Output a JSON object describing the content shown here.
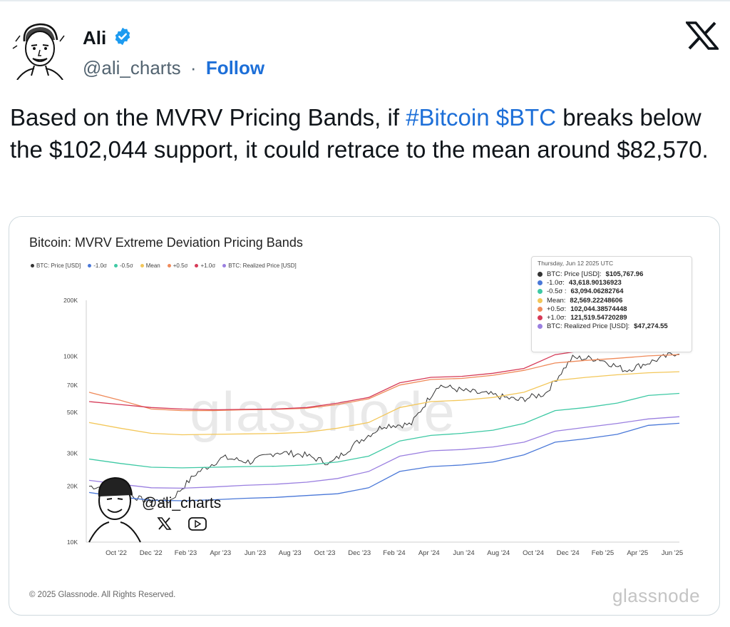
{
  "header": {
    "name": "Ali",
    "handle": "@ali_charts",
    "separator": "·",
    "follow_label": "Follow"
  },
  "tweet": {
    "text_before": "Based on the MVRV Pricing Bands, if ",
    "hashtag": "#Bitcoin",
    "space": " ",
    "cashtag": "$BTC",
    "text_after": " breaks below the $102,044 support, it could retrace to the mean around $82,570."
  },
  "colors": {
    "link": "#1d6fd8",
    "price": "#333333",
    "minus1": "#4a78d8",
    "minus05": "#3ec9a4",
    "mean": "#f3c75a",
    "plus05": "#ef8a5a",
    "plus1": "#d63a57",
    "realized": "#9a7fe0"
  },
  "media": {
    "watermark_handle": "@ali_charts",
    "copyright": "© 2025 Glassnode. All Rights Reserved.",
    "footer_brand": "glassnode",
    "background_watermark": "glassnode"
  },
  "chart_data": {
    "type": "line",
    "title": "Bitcoin: MVRV Extreme Deviation Pricing Bands",
    "y_scale": "log",
    "ylim": [
      10000,
      200000
    ],
    "y_ticks": [
      {
        "value": 200000,
        "label": "200K"
      },
      {
        "value": 100000,
        "label": "100K"
      },
      {
        "value": 70000,
        "label": "70K"
      },
      {
        "value": 50000,
        "label": "50K"
      },
      {
        "value": 30000,
        "label": "30K"
      },
      {
        "value": 20000,
        "label": "20K"
      },
      {
        "value": 10000,
        "label": "10K"
      }
    ],
    "x_ticks": [
      "Oct '22",
      "Dec '22",
      "Feb '23",
      "Apr '23",
      "Jun '23",
      "Aug '23",
      "Oct '23",
      "Dec '23",
      "Feb '24",
      "Apr '24",
      "Jun '24",
      "Aug '24",
      "Oct '24",
      "Dec '24",
      "Feb '25",
      "Apr '25",
      "Jun '25"
    ],
    "legend": [
      {
        "name": "BTC: Price [USD]",
        "color": "#333333"
      },
      {
        "name": "-1.0σ",
        "color": "#4a78d8"
      },
      {
        "name": "-0.5σ",
        "color": "#3ec9a4"
      },
      {
        "name": "Mean",
        "color": "#f3c75a"
      },
      {
        "name": "+0.5σ",
        "color": "#ef8a5a"
      },
      {
        "name": "+1.0σ",
        "color": "#d63a57"
      },
      {
        "name": "BTC: Realized Price [USD]",
        "color": "#9a7fe0"
      }
    ],
    "tooltip": {
      "date": "Thursday, Jun 12 2025 UTC",
      "rows": [
        {
          "label": "BTC: Price [USD]: ",
          "value": "$105,767.96",
          "color": "#333333"
        },
        {
          "label": "-1.0σ: ",
          "value": "43,618.90136923",
          "color": "#4a78d8"
        },
        {
          "label": "-0.5σ : ",
          "value": "63,094.06282764",
          "color": "#3ec9a4"
        },
        {
          "label": "Mean: ",
          "value": "82,569.22248606",
          "color": "#f3c75a"
        },
        {
          "label": "+0.5σ: ",
          "value": "102,044.38574448",
          "color": "#ef8a5a"
        },
        {
          "label": "+1.0σ: ",
          "value": "121,519.54720289",
          "color": "#d63a57"
        },
        {
          "label": "BTC: Realized Price [USD]: ",
          "value": "$47,274.55",
          "color": "#9a7fe0"
        }
      ]
    },
    "series": [
      {
        "name": "BTC: Price [USD]",
        "key": "price",
        "values": [
          20000,
          19500,
          16800,
          16600,
          23500,
          28500,
          27000,
          30500,
          29500,
          26500,
          34500,
          42500,
          43000,
          70000,
          65000,
          62000,
          58000,
          63000,
          98000,
          97000,
          84000,
          94000,
          105768
        ]
      },
      {
        "name": "-1.0σ",
        "key": "minus1",
        "values": [
          18500,
          17500,
          16800,
          16700,
          16900,
          17200,
          17400,
          17800,
          18200,
          19600,
          24000,
          25500,
          26000,
          27000,
          29500,
          34500,
          36000,
          38000,
          42500,
          43600
        ]
      },
      {
        "name": "-0.5σ",
        "key": "minus05",
        "values": [
          28000,
          26500,
          25300,
          25100,
          25300,
          25500,
          25600,
          26000,
          27000,
          29000,
          35000,
          37500,
          38500,
          40000,
          43500,
          51000,
          53000,
          56000,
          61500,
          63100
        ]
      },
      {
        "name": "Mean",
        "key": "mean",
        "values": [
          44000,
          41000,
          38500,
          37800,
          38000,
          38200,
          38400,
          39000,
          41000,
          44000,
          53000,
          57000,
          58000,
          60000,
          64000,
          74000,
          77000,
          79500,
          81500,
          82570
        ]
      },
      {
        "name": "+0.5σ",
        "key": "plus05",
        "values": [
          64000,
          58000,
          52000,
          51000,
          51000,
          51500,
          51800,
          52500,
          55000,
          59000,
          70000,
          75000,
          76000,
          79000,
          84000,
          92000,
          95000,
          97500,
          100500,
          102044
        ]
      },
      {
        "name": "+1.0σ",
        "key": "plus1",
        "values": [
          57000,
          55000,
          53000,
          52000,
          51500,
          51800,
          52000,
          53000,
          56000,
          60000,
          72000,
          77000,
          78000,
          81000,
          86000,
          102000,
          108000,
          111000,
          116000,
          121520
        ]
      },
      {
        "name": "BTC: Realized Price [USD]",
        "key": "realized",
        "values": [
          21500,
          20500,
          19600,
          19500,
          19800,
          20200,
          20500,
          21000,
          22000,
          24000,
          29000,
          31000,
          31500,
          32500,
          34500,
          39500,
          41500,
          43500,
          46000,
          47275
        ]
      }
    ]
  }
}
